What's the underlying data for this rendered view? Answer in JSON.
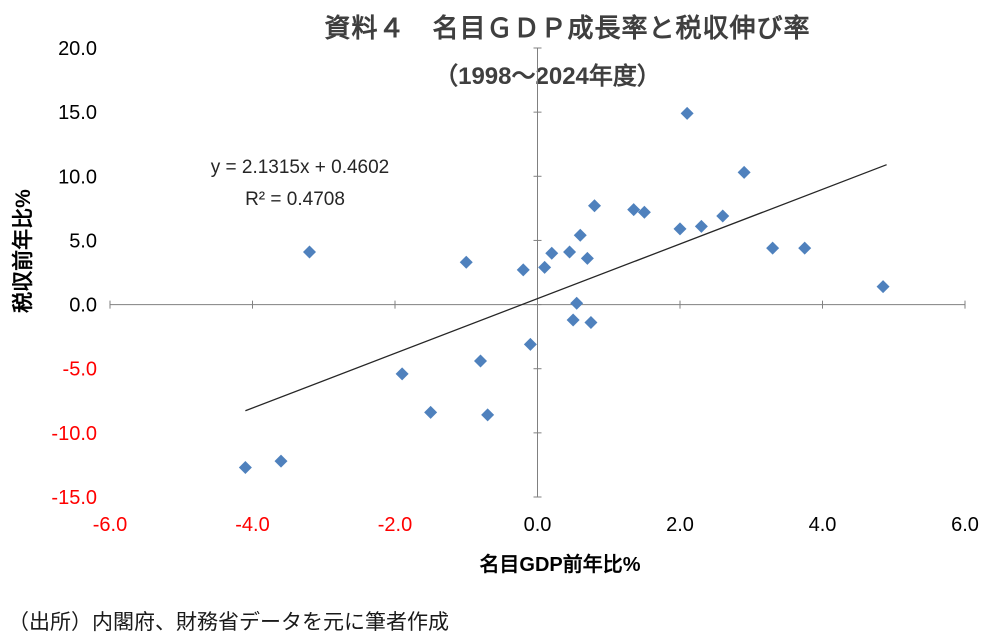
{
  "chart_data": {
    "type": "scatter",
    "title": "資料４　名目ＧＤＰ成長率と税収伸び率",
    "subtitle": "（1998～2024年度）",
    "xlabel": "名目GDP前年比%",
    "ylabel": "税収前年比%",
    "xlim": [
      -6.0,
      6.0
    ],
    "ylim": [
      -15.0,
      20.0
    ],
    "x_ticks": [
      -6.0,
      -4.0,
      -2.0,
      0.0,
      2.0,
      4.0,
      6.0
    ],
    "y_ticks": [
      20.0,
      15.0,
      10.0,
      5.0,
      0.0,
      -5.0,
      -10.0,
      -15.0
    ],
    "grid": false,
    "legend": "none",
    "marker": "diamond",
    "marker_color": "#4F81BD",
    "axis_color": "#808080",
    "positive_tick_color": "#000000",
    "negative_tick_color": "#FF0000",
    "points": [
      [
        -4.1,
        -12.7
      ],
      [
        -3.6,
        -12.2
      ],
      [
        -3.2,
        4.1
      ],
      [
        -1.9,
        -5.4
      ],
      [
        -1.5,
        -8.4
      ],
      [
        -1.0,
        3.3
      ],
      [
        -0.8,
        -4.4
      ],
      [
        -0.7,
        -8.6
      ],
      [
        -0.2,
        2.7
      ],
      [
        -0.1,
        -3.1
      ],
      [
        0.1,
        2.9
      ],
      [
        0.2,
        4.0
      ],
      [
        0.45,
        4.1
      ],
      [
        0.55,
        0.1
      ],
      [
        0.5,
        -1.2
      ],
      [
        0.6,
        5.4
      ],
      [
        0.7,
        3.6
      ],
      [
        0.75,
        -1.4
      ],
      [
        0.8,
        7.7
      ],
      [
        1.35,
        7.4
      ],
      [
        1.5,
        7.2
      ],
      [
        2.0,
        5.9
      ],
      [
        2.1,
        14.9
      ],
      [
        2.3,
        6.1
      ],
      [
        2.6,
        6.9
      ],
      [
        2.9,
        10.3
      ],
      [
        3.3,
        4.4
      ],
      [
        3.75,
        4.4
      ],
      [
        4.85,
        1.4
      ]
    ],
    "trendline": {
      "equation_label": "y = 2.1315x + 0.4602",
      "r2_label": "R² = 0.4708",
      "slope": 2.1315,
      "intercept": 0.4602,
      "x_start": -4.1,
      "x_end": 4.9,
      "color": "#262626"
    }
  },
  "source_note": "（出所）内閣府、財務省データを元に筆者作成"
}
